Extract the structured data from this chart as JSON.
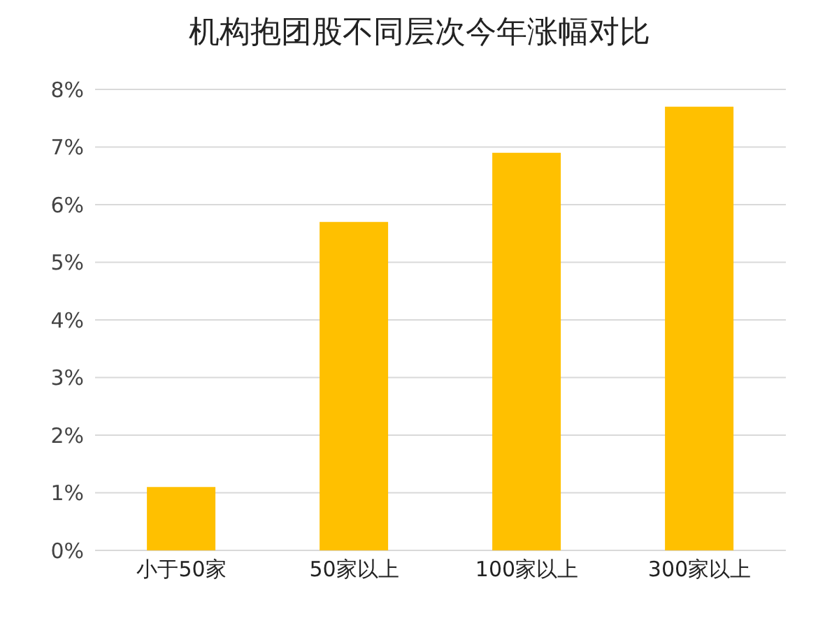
{
  "chart_data": {
    "type": "bar",
    "title": "机构抱团股不同层次今年涨幅对比",
    "categories": [
      "小于50家",
      "50家以上",
      "100家以上",
      "300家以上"
    ],
    "values": [
      1.1,
      5.7,
      6.9,
      7.7
    ],
    "color": "#ffc000",
    "ylim": [
      0,
      8
    ],
    "yticks": [
      {
        "value": 0,
        "label": "0%"
      },
      {
        "value": 1,
        "label": "1%"
      },
      {
        "value": 2,
        "label": "2%"
      },
      {
        "value": 3,
        "label": "3%"
      },
      {
        "value": 4,
        "label": "4%"
      },
      {
        "value": 5,
        "label": "5%"
      },
      {
        "value": 6,
        "label": "6%"
      },
      {
        "value": 7,
        "label": "7%"
      },
      {
        "value": 8,
        "label": "8%"
      }
    ],
    "grid": "y"
  }
}
